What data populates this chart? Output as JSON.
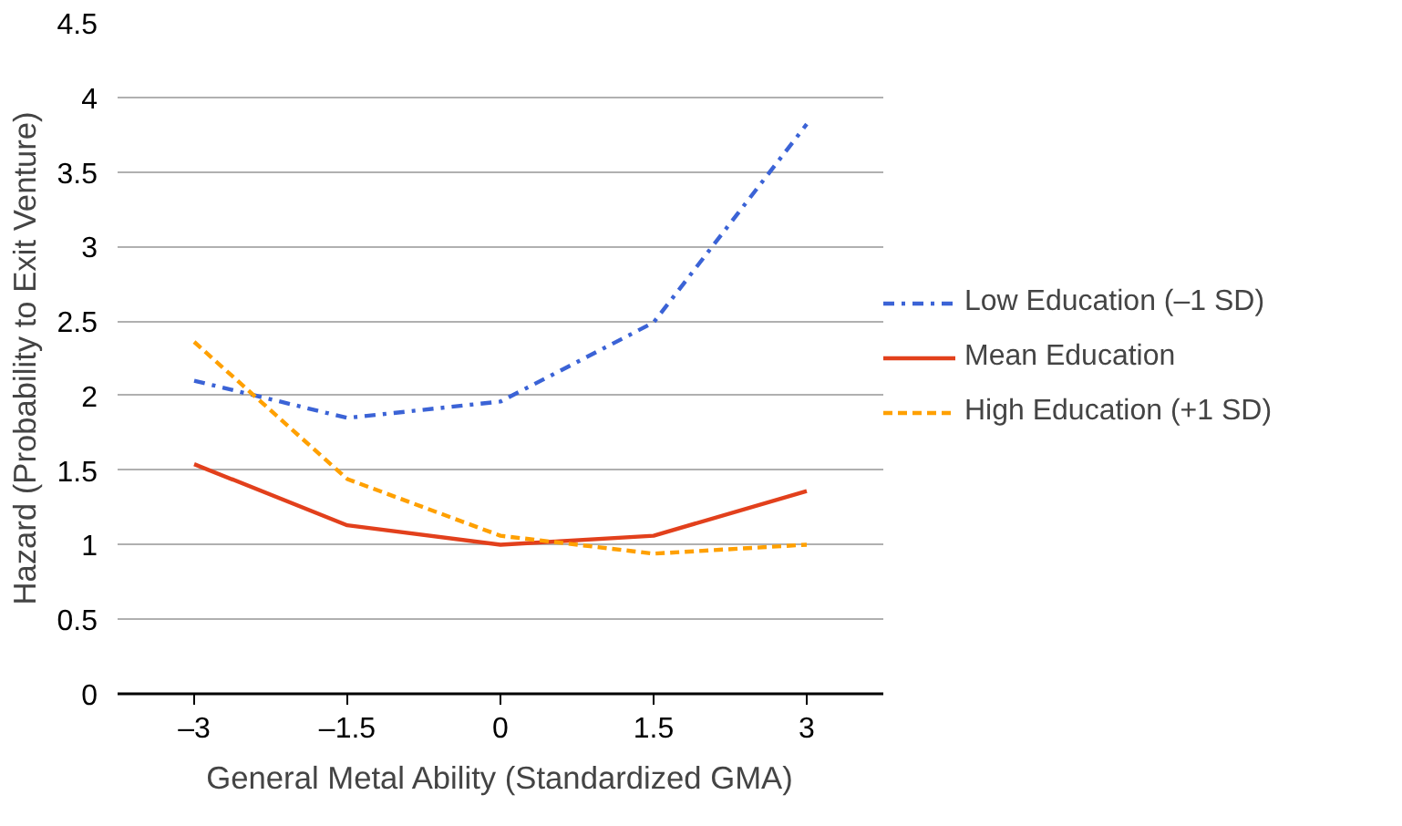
{
  "chart_data": {
    "type": "line",
    "xlabel": "General Metal Ability (Standardized GMA)",
    "ylabel": "Hazard (Probability to Exit Venture)",
    "categories": [
      "–3",
      "–1.5",
      "0",
      "1.5",
      "3"
    ],
    "ylim": [
      0,
      4.5
    ],
    "yticks": [
      0,
      0.5,
      1,
      1.5,
      2,
      2.5,
      3,
      3.5,
      4,
      4.5
    ],
    "grid": "y",
    "legend": "right",
    "marker": "none",
    "series": [
      {
        "name": "Low Education (–1 SD)",
        "color": "#3b63d6",
        "line_style": "dashdot",
        "values": [
          2.1,
          1.85,
          1.96,
          2.49,
          3.82
        ]
      },
      {
        "name": "Mean Education",
        "color": "#e2401c",
        "line_style": "solid",
        "values": [
          1.54,
          1.13,
          1.0,
          1.06,
          1.36
        ]
      },
      {
        "name": "High Education (+1 SD)",
        "color": "#ffa000",
        "line_style": "dashed",
        "values": [
          2.36,
          1.44,
          1.06,
          0.94,
          1.0
        ]
      }
    ]
  }
}
